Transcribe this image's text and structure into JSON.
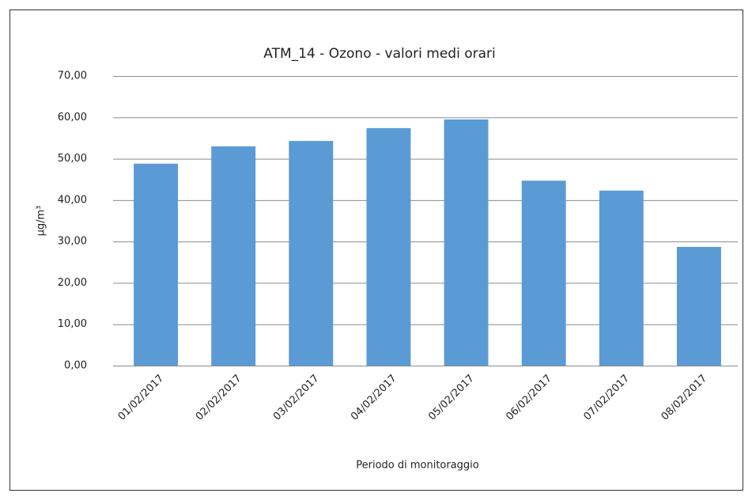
{
  "chart_data": {
    "type": "bar",
    "title": "ATM_14 - Ozono - valori medi orari",
    "x_label": "Periodo di  monitoraggio",
    "y_label": "μg/m³",
    "categories": [
      "01/02/2017",
      "02/02/2017",
      "03/02/2017",
      "04/02/2017",
      "05/02/2017",
      "06/02/2017",
      "07/02/2017",
      "08/02/2017"
    ],
    "values": [
      48.8,
      53.0,
      54.3,
      57.4,
      59.5,
      44.7,
      42.3,
      28.7
    ],
    "color": "#5b9bd5",
    "ylim": [
      0,
      70
    ],
    "yticks": [
      {
        "value": 0,
        "label": "0,00"
      },
      {
        "value": 10,
        "label": "10,00"
      },
      {
        "value": 20,
        "label": "20,00"
      },
      {
        "value": 30,
        "label": "30,00"
      },
      {
        "value": 40,
        "label": "40,00"
      },
      {
        "value": 50,
        "label": "50,00"
      },
      {
        "value": 60,
        "label": "60,00"
      },
      {
        "value": 70,
        "label": "70,00"
      }
    ],
    "grid": true
  }
}
